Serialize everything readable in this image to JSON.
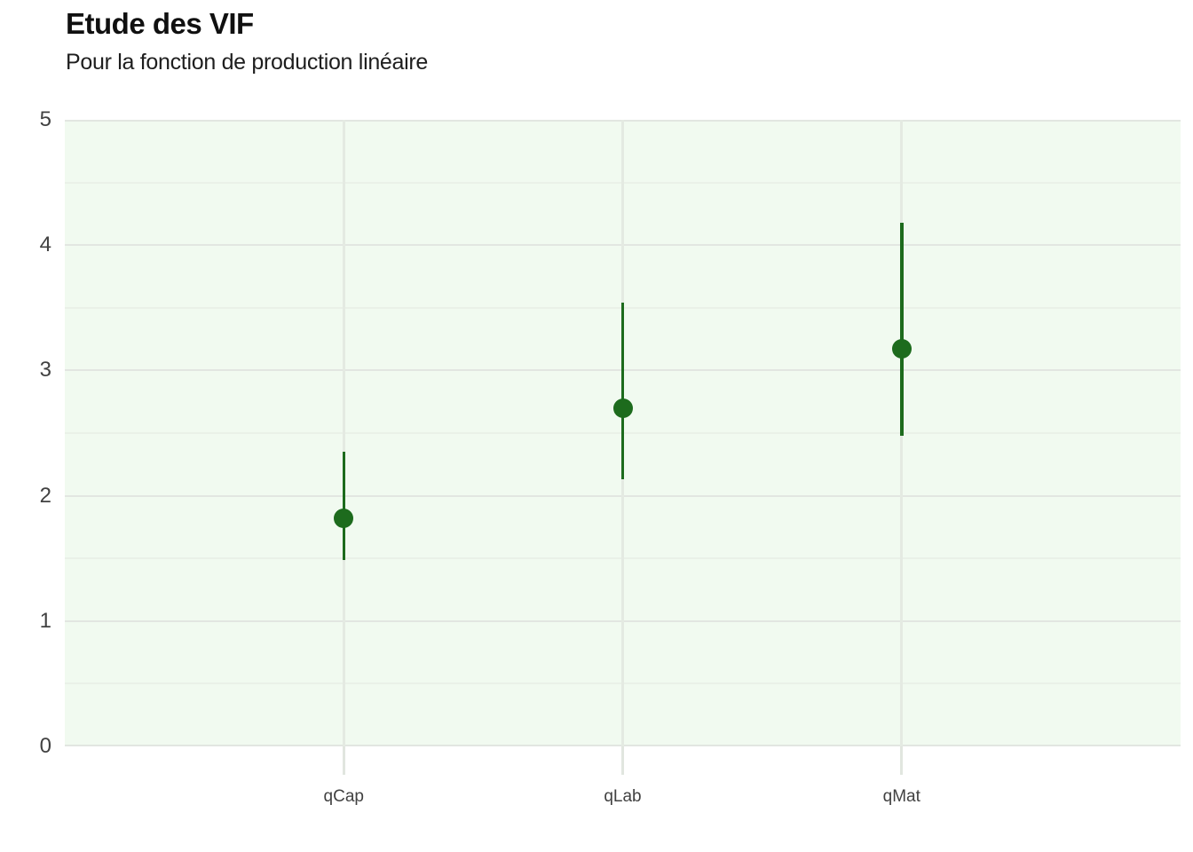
{
  "header": {
    "title": "Etude des VIF",
    "subtitle": "Pour la fonction de production linéaire"
  },
  "chart_data": {
    "type": "scatter",
    "subtype": "pointrange",
    "title": "Etude des VIF",
    "subtitle": "Pour la fonction de production linéaire",
    "categories": [
      "qCap",
      "qLab",
      "qMat"
    ],
    "values": [
      1.82,
      2.7,
      3.17
    ],
    "ci_low": [
      1.49,
      2.13,
      2.48
    ],
    "ci_high": [
      2.35,
      3.54,
      4.18
    ],
    "xlabel": "",
    "ylabel": "",
    "ylim": [
      0,
      5
    ],
    "y_major_ticks": [
      5,
      4,
      3,
      2,
      1,
      0
    ],
    "y_minor_ticks": [
      4.5,
      3.5,
      2.5,
      1.5,
      0.5
    ],
    "grid": true,
    "legend": false
  },
  "colors": {
    "point": "#1d6b1d",
    "panel_bg": "#f1faf0",
    "grid_major": "#e2e6e1",
    "grid_minor": "#eaf1e8",
    "grid_vertical": "#e4eae2",
    "axis_tick": "#e1e6df",
    "axis_text": "#414141",
    "title_text": "#101010",
    "subtitle_text": "#1e1e1e",
    "background": "#ffffff"
  }
}
